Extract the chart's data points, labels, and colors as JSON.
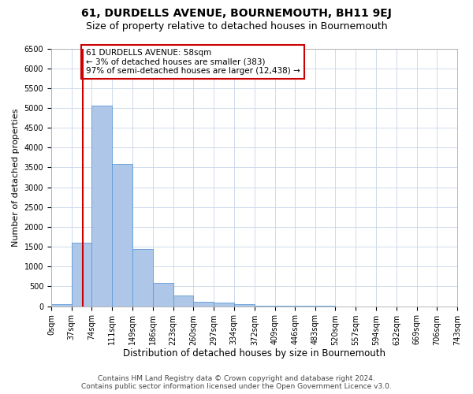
{
  "title": "61, DURDELLS AVENUE, BOURNEMOUTH, BH11 9EJ",
  "subtitle": "Size of property relative to detached houses in Bournemouth",
  "xlabel": "Distribution of detached houses by size in Bournemouth",
  "ylabel": "Number of detached properties",
  "footer_line1": "Contains HM Land Registry data © Crown copyright and database right 2024.",
  "footer_line2": "Contains public sector information licensed under the Open Government Licence v3.0.",
  "annotation_line1": "61 DURDELLS AVENUE: 58sqm",
  "annotation_line2": "← 3% of detached houses are smaller (383)",
  "annotation_line3": "97% of semi-detached houses are larger (12,438) →",
  "property_size": 58,
  "bin_edges": [
    0,
    37,
    74,
    111,
    149,
    186,
    223,
    260,
    297,
    334,
    372,
    409,
    446,
    483,
    520,
    557,
    594,
    632,
    669,
    706,
    743
  ],
  "bin_counts": [
    50,
    1600,
    5050,
    3580,
    1450,
    590,
    265,
    115,
    85,
    55,
    18,
    9,
    5,
    4,
    2,
    2,
    1,
    1,
    1,
    1
  ],
  "bar_color": "#aec6e8",
  "bar_edge_color": "#5b9bd5",
  "vline_color": "#cc0000",
  "annotation_box_color": "#cc0000",
  "background_color": "#ffffff",
  "grid_color": "#c8d4e8",
  "ylim": [
    0,
    6500
  ],
  "yticks": [
    0,
    500,
    1000,
    1500,
    2000,
    2500,
    3000,
    3500,
    4000,
    4500,
    5000,
    5500,
    6000,
    6500
  ],
  "title_fontsize": 10,
  "subtitle_fontsize": 9,
  "xlabel_fontsize": 8.5,
  "ylabel_fontsize": 8,
  "tick_fontsize": 7,
  "annotation_fontsize": 7.5,
  "footer_fontsize": 6.5
}
